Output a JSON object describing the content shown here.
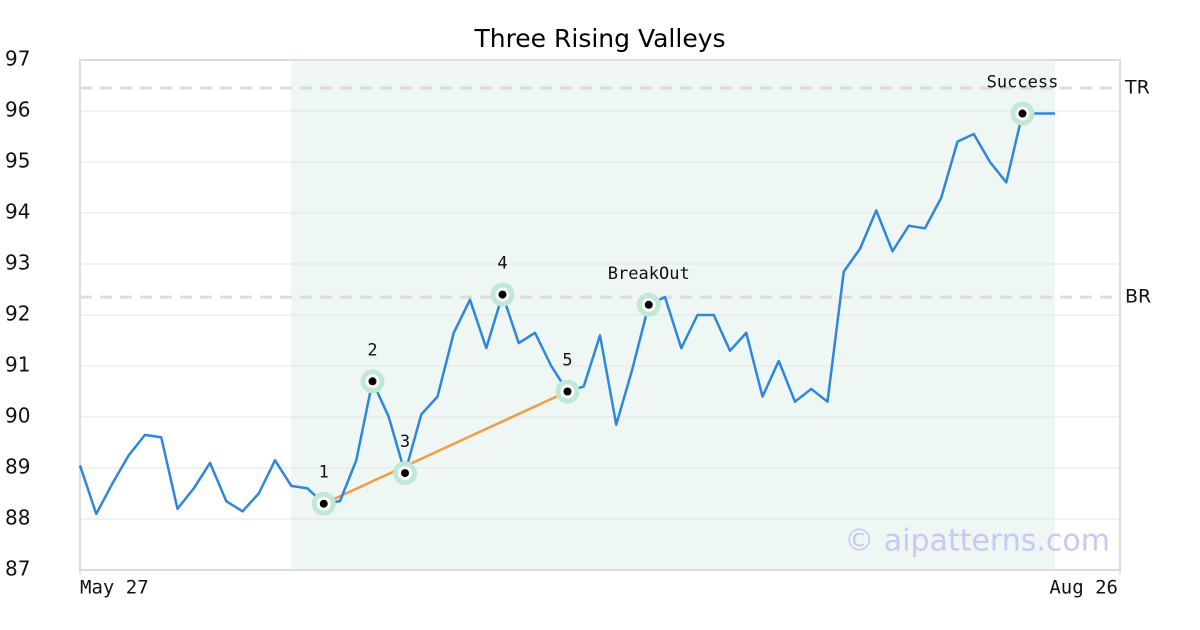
{
  "chart_data": {
    "type": "line",
    "title": "Three Rising Valleys",
    "xlim": [
      0,
      64
    ],
    "xticks": [
      {
        "value": 0,
        "label": "May 27"
      },
      {
        "value": 64,
        "label": "Aug 26"
      }
    ],
    "ylim": [
      87,
      97
    ],
    "yticks": [
      87,
      88,
      89,
      90,
      91,
      92,
      93,
      94,
      95,
      96,
      97
    ],
    "grid": true,
    "series": [
      {
        "color": "#2e86de",
        "values": [
          89.05,
          88.1,
          88.7,
          89.25,
          89.65,
          89.6,
          88.2,
          88.6,
          89.1,
          88.35,
          88.15,
          88.5,
          89.15,
          88.65,
          88.6,
          88.3,
          88.35,
          89.15,
          90.7,
          90.0,
          88.9,
          90.05,
          90.4,
          91.65,
          92.3,
          91.35,
          92.4,
          91.45,
          91.65,
          91.0,
          90.5,
          90.6,
          91.6,
          89.85,
          90.95,
          92.2,
          92.35,
          91.35,
          92.0,
          92.0,
          91.3,
          91.65,
          90.4,
          91.1,
          90.3,
          90.55,
          90.3,
          92.85,
          93.3,
          94.05,
          93.25,
          93.75,
          93.7,
          94.3,
          95.4,
          95.55,
          95.0,
          94.6,
          95.95,
          95.95,
          95.95
        ]
      }
    ],
    "highlight_range": [
      13,
      60
    ],
    "highlight_color": "#eef7f3",
    "levels": [
      {
        "label": "TR",
        "value": 96.45
      },
      {
        "label": "BR",
        "value": 92.35
      }
    ],
    "trendline": {
      "x": [
        15,
        30
      ],
      "y": [
        88.3,
        90.5
      ],
      "color": "#f39c42"
    },
    "markers": [
      {
        "label": "1",
        "index": 15
      },
      {
        "label": "2",
        "index": 18
      },
      {
        "label": "3",
        "index": 20
      },
      {
        "label": "4",
        "index": 26
      },
      {
        "label": "5",
        "index": 30
      },
      {
        "label": "BreakOut",
        "index": 35
      },
      {
        "label": "Success",
        "index": 58
      }
    ],
    "watermark": "© aipatterns.com"
  }
}
